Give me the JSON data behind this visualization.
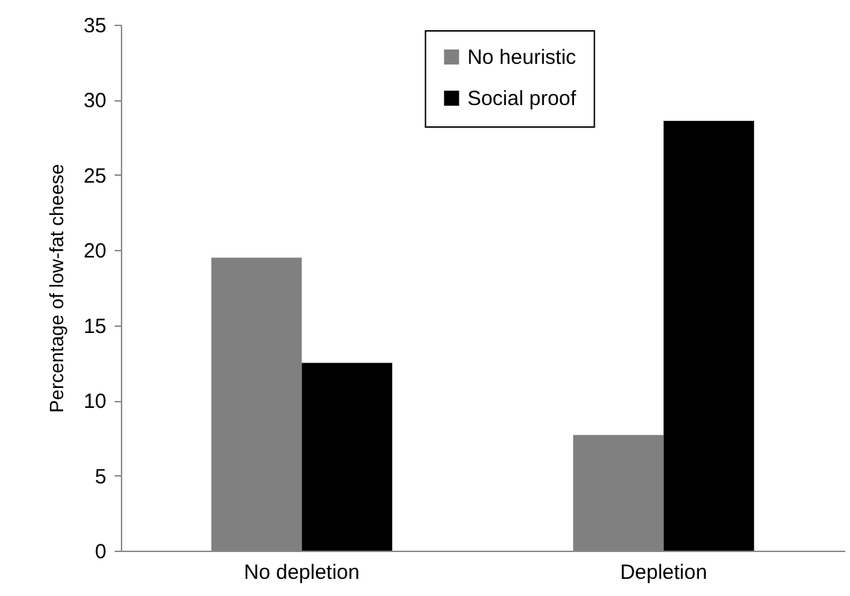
{
  "chart_data": {
    "type": "bar",
    "ylabel": "Percentage of low-fat cheese",
    "categories": [
      "No depletion",
      "Depletion"
    ],
    "series": [
      {
        "name": "No heuristic",
        "color": "#808080",
        "values": [
          19.5,
          7.7
        ]
      },
      {
        "name": "Social proof",
        "color": "#000000",
        "values": [
          12.5,
          28.6
        ]
      }
    ],
    "ylim": [
      0,
      35
    ],
    "yticks": [
      0,
      5,
      10,
      15,
      20,
      25,
      30,
      35
    ],
    "grid": false,
    "legend": "top"
  }
}
